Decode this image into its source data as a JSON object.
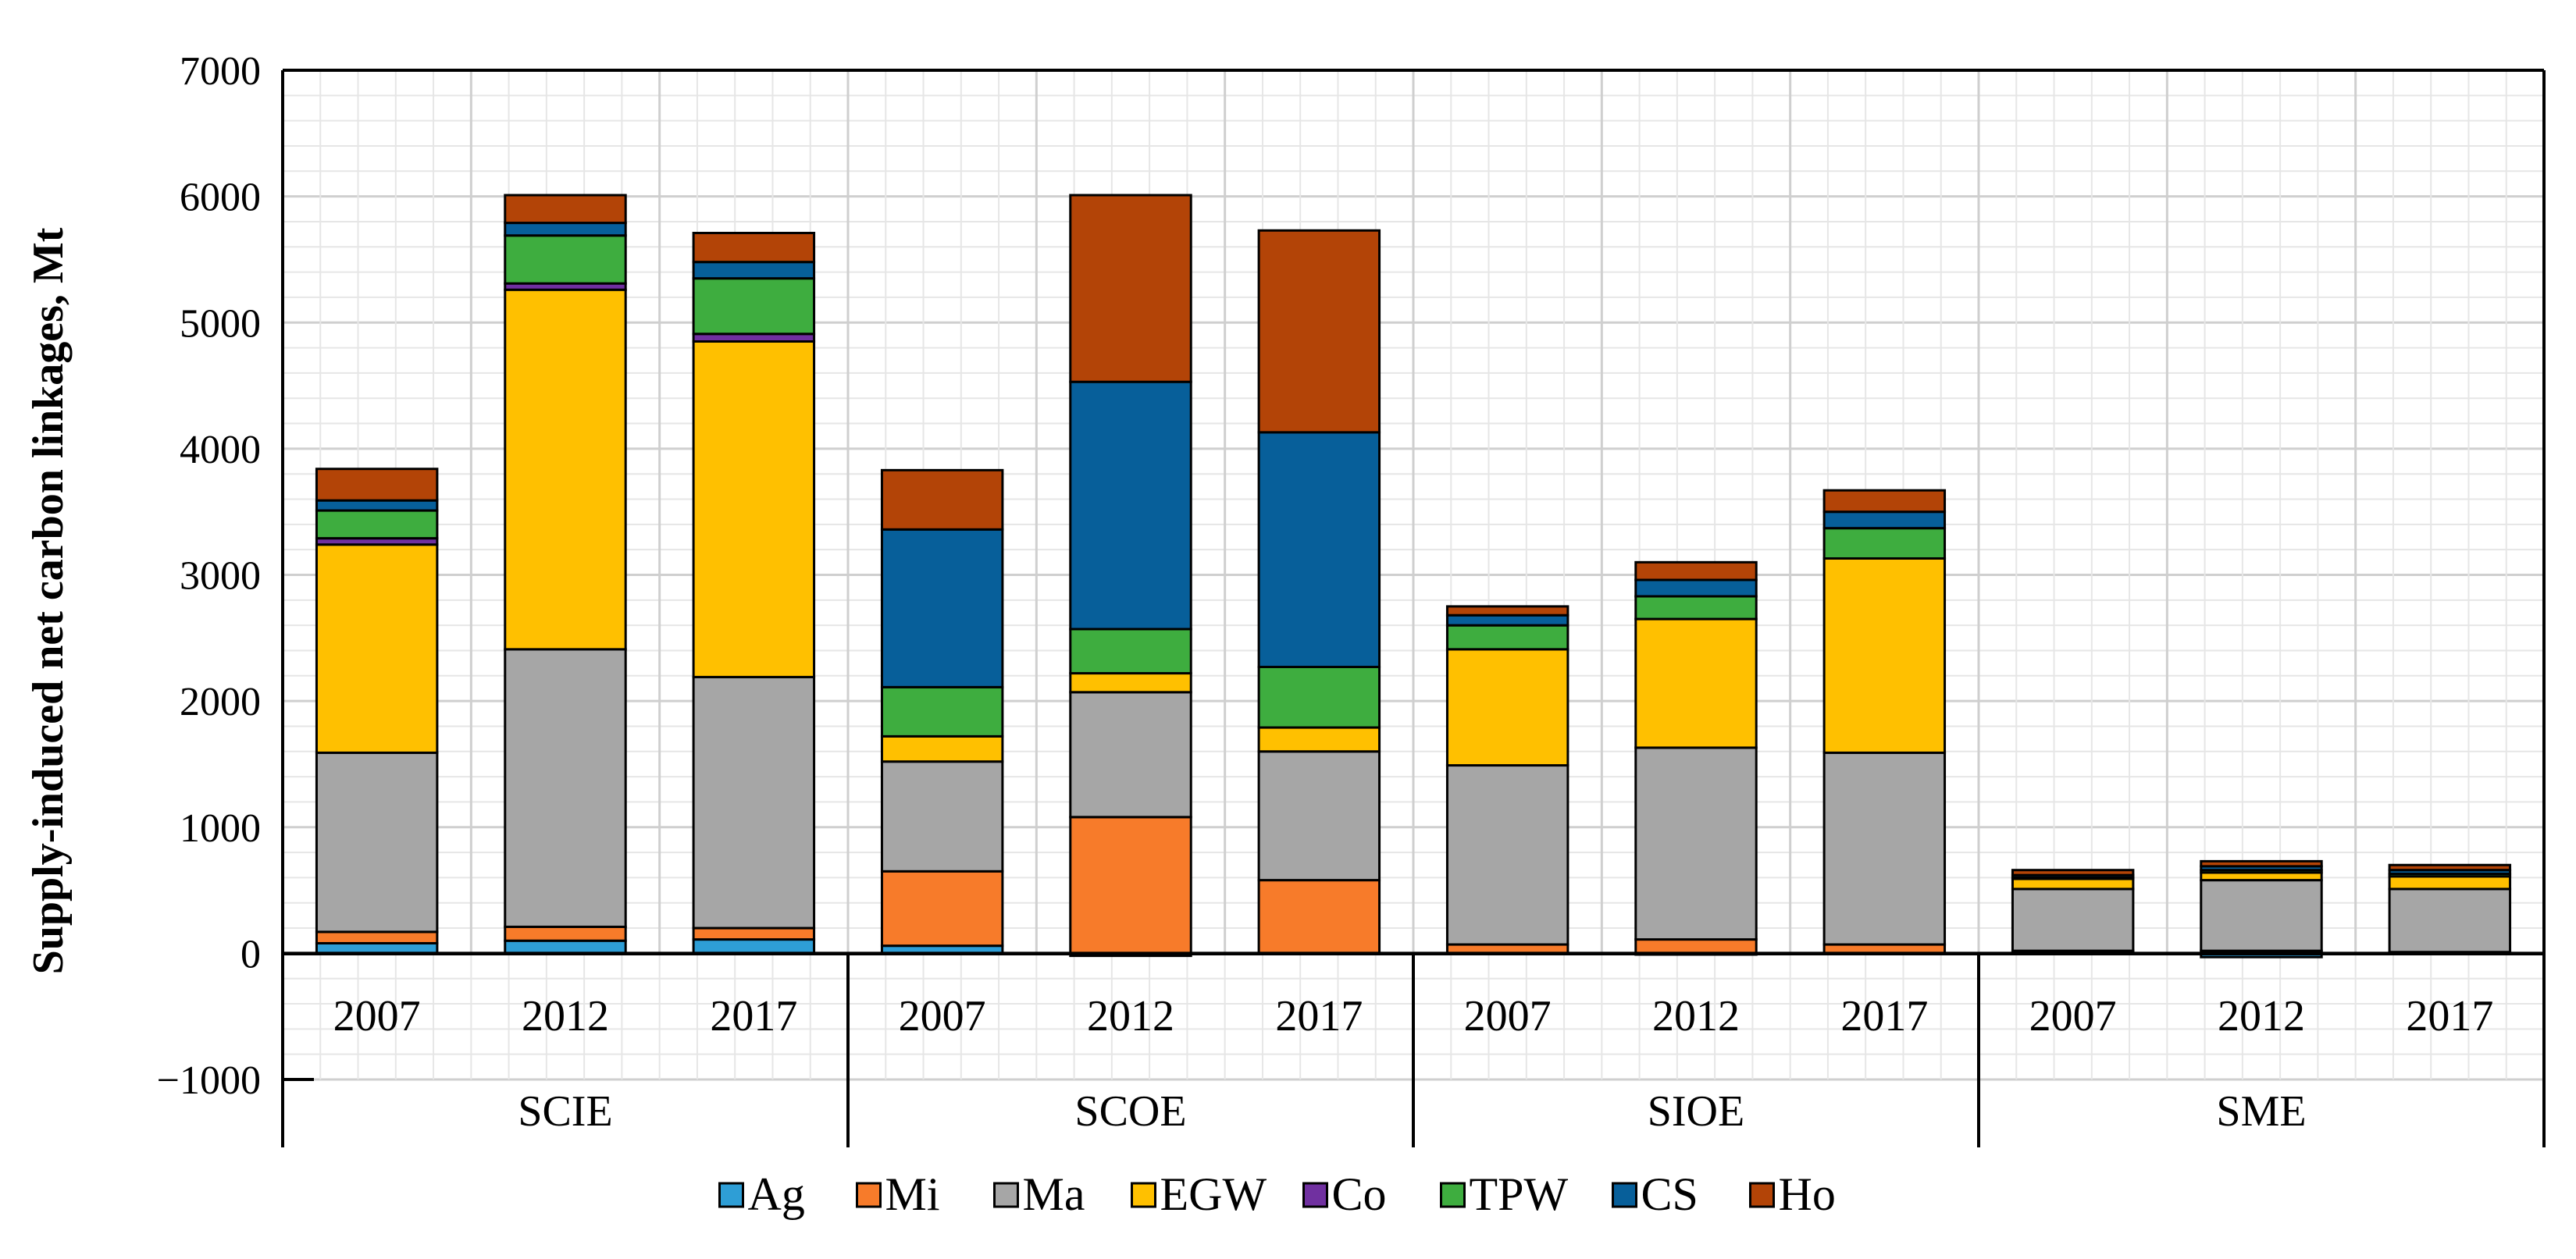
{
  "chart_data": {
    "type": "bar",
    "stacked": true,
    "title": "",
    "xlabel": "",
    "ylabel": "Supply-induced net carbon linkages, Mt",
    "ylim": [
      -1000,
      7000
    ],
    "y_ticks": [
      -1000,
      0,
      1000,
      2000,
      3000,
      4000,
      5000,
      6000,
      7000
    ],
    "y_tick_labels": [
      "−1000",
      "0",
      "1000",
      "2000",
      "3000",
      "4000",
      "5000",
      "6000",
      "7000"
    ],
    "grid": true,
    "legend_position": "bottom",
    "categories": [
      "2007",
      "2012",
      "2017",
      "2007",
      "2012",
      "2017",
      "2007",
      "2012",
      "2017",
      "2007",
      "2012",
      "2017"
    ],
    "groups": [
      {
        "label": "SCIE",
        "size": 3
      },
      {
        "label": "SCOE",
        "size": 3
      },
      {
        "label": "SIOE",
        "size": 3
      },
      {
        "label": "SME",
        "size": 3
      }
    ],
    "series": [
      {
        "name": "Ag",
        "color": "#2E9ED6",
        "values": [
          80,
          100,
          110,
          60,
          -20,
          0,
          0,
          -10,
          0,
          20,
          -30,
          10
        ]
      },
      {
        "name": "Mi",
        "color": "#F77B2A",
        "values": [
          90,
          110,
          90,
          590,
          1080,
          580,
          70,
          110,
          70,
          0,
          20,
          0
        ]
      },
      {
        "name": "Ma",
        "color": "#A6A6A6",
        "values": [
          1420,
          2200,
          1990,
          870,
          990,
          1020,
          1420,
          1520,
          1520,
          490,
          560,
          500
        ]
      },
      {
        "name": "EGW",
        "color": "#FFC000",
        "values": [
          1650,
          2850,
          2660,
          200,
          150,
          190,
          920,
          1020,
          1540,
          80,
          60,
          100
        ]
      },
      {
        "name": "Co",
        "color": "#7030A0",
        "values": [
          50,
          50,
          60,
          0,
          0,
          0,
          0,
          0,
          0,
          0,
          0,
          0
        ]
      },
      {
        "name": "TPW",
        "color": "#3EAD3F",
        "values": [
          220,
          380,
          440,
          390,
          350,
          480,
          190,
          180,
          240,
          10,
          20,
          20
        ]
      },
      {
        "name": "CS",
        "color": "#075F9A",
        "values": [
          80,
          100,
          130,
          1250,
          1960,
          1860,
          80,
          130,
          130,
          20,
          30,
          30
        ]
      },
      {
        "name": "Ho",
        "color": "#B34407",
        "values": [
          250,
          220,
          230,
          470,
          1480,
          1600,
          70,
          140,
          170,
          40,
          40,
          40
        ]
      }
    ]
  }
}
